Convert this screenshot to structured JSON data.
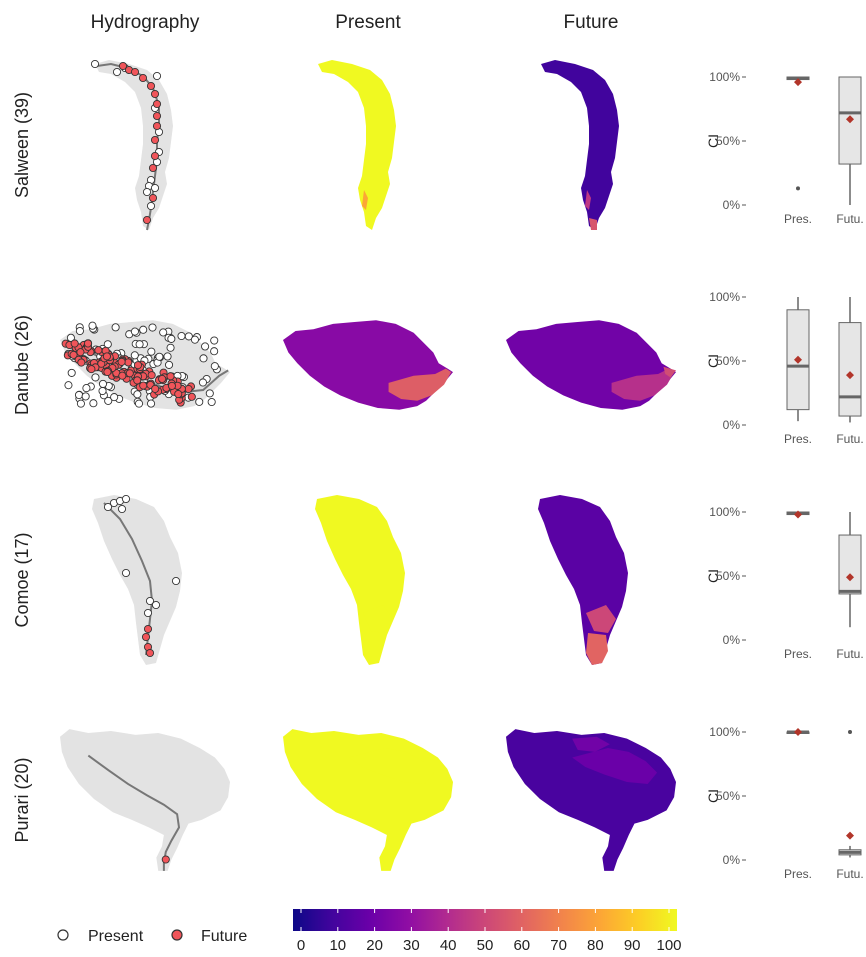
{
  "headers": {
    "hydrography": "Hydrography",
    "present": "Present",
    "future": "Future"
  },
  "legend": {
    "present": "Present",
    "future": "Future"
  },
  "colors": {
    "basin_gray": "#e3e3e3",
    "river": "#777777",
    "future_point": "#f0555a",
    "mean_marker": "#b2352a",
    "box_fill": "#e6e6e6",
    "box_line": "#666666"
  },
  "colorbar": {
    "ticks": [
      "0",
      "10",
      "20",
      "30",
      "40",
      "50",
      "60",
      "70",
      "80",
      "90",
      "100"
    ],
    "palette": "plasma"
  },
  "basins": [
    {
      "label": "Salween (39)",
      "shape": "salween",
      "present_ci": 100,
      "future_ci": 10,
      "future_hot_ci": 55
    },
    {
      "label": "Danube (26)",
      "shape": "danube",
      "present_ci": 28,
      "future_ci": 22,
      "future_hot_ci": 52
    },
    {
      "label": "Comoe (17)",
      "shape": "comoe",
      "present_ci": 100,
      "future_ci": 16,
      "future_hot_ci": 60
    },
    {
      "label": "Purari (20)",
      "shape": "purari",
      "present_ci": 100,
      "future_ci": 12,
      "future_hot_ci": 22
    }
  ],
  "chart_data": {
    "type": "box",
    "ylabel": "CI",
    "categories": [
      "Pres.",
      "Futu."
    ],
    "yticks": [
      "0%",
      "50%",
      "100%"
    ],
    "ylim": [
      0,
      100
    ],
    "panels": [
      {
        "basin": "Salween (39)",
        "boxes": [
          {
            "category": "Pres.",
            "min": 97,
            "q1": 98,
            "median": 99,
            "q3": 100,
            "max": 100,
            "mean": 96,
            "outliers": [
              13
            ]
          },
          {
            "category": "Futu.",
            "min": 0,
            "q1": 32,
            "median": 72,
            "q3": 100,
            "max": 100,
            "mean": 67,
            "outliers": []
          }
        ]
      },
      {
        "basin": "Danube (26)",
        "boxes": [
          {
            "category": "Pres.",
            "min": 3,
            "q1": 12,
            "median": 46,
            "q3": 90,
            "max": 100,
            "mean": 51,
            "outliers": []
          },
          {
            "category": "Futu.",
            "min": 2,
            "q1": 7,
            "median": 22,
            "q3": 80,
            "max": 100,
            "mean": 39,
            "outliers": []
          }
        ]
      },
      {
        "basin": "Comoe (17)",
        "boxes": [
          {
            "category": "Pres.",
            "min": 97,
            "q1": 98,
            "median": 99,
            "q3": 100,
            "max": 100,
            "mean": 98,
            "outliers": []
          },
          {
            "category": "Futu.",
            "min": 10,
            "q1": 36,
            "median": 38,
            "q3": 82,
            "max": 100,
            "mean": 49,
            "outliers": []
          }
        ]
      },
      {
        "basin": "Purari (20)",
        "boxes": [
          {
            "category": "Pres.",
            "min": 100,
            "q1": 100,
            "median": 100,
            "q3": 100,
            "max": 100,
            "mean": 100,
            "outliers": []
          },
          {
            "category": "Futu.",
            "min": 2,
            "q1": 4,
            "median": 6,
            "q3": 8,
            "max": 11,
            "mean": 19,
            "outliers": [
              100
            ]
          }
        ]
      }
    ]
  }
}
